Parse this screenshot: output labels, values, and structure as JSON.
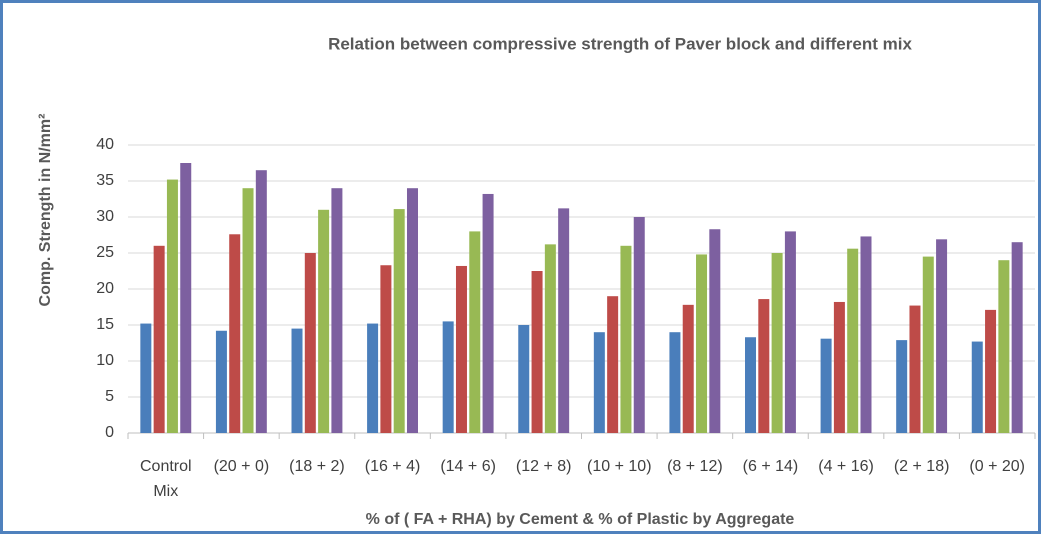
{
  "chart_data": {
    "type": "bar",
    "title": "Relation between compressive strength of Paver block and  different mix",
    "xlabel": "% of ( FA + RHA) by Cement & % of Plastic by Aggregate",
    "ylabel": "Comp. Strength in N/mm²",
    "categories": [
      "Control Mix",
      "(20 + 0)",
      "(18 + 2)",
      "(16 + 4)",
      "(14 + 6)",
      "(12 + 8)",
      "(10 + 10)",
      "(8 + 12)",
      "(6 + 14)",
      "(4 + 16)",
      "(2 + 18)",
      "(0 + 20)"
    ],
    "series": [
      {
        "color": "#4a7ebb",
        "values": [
          15.2,
          14.2,
          14.5,
          15.2,
          15.5,
          15.0,
          14.0,
          14.0,
          13.3,
          13.1,
          12.9,
          12.7
        ]
      },
      {
        "color": "#be4b48",
        "values": [
          26.0,
          27.6,
          25.0,
          23.3,
          23.2,
          22.5,
          19.0,
          17.8,
          18.6,
          18.2,
          17.7,
          17.1
        ]
      },
      {
        "color": "#98b954",
        "values": [
          35.2,
          34.0,
          31.0,
          31.1,
          28.0,
          26.2,
          26.0,
          24.8,
          25.0,
          25.6,
          24.5,
          24.0
        ]
      },
      {
        "color": "#7d60a0",
        "values": [
          37.5,
          36.5,
          34.0,
          34.0,
          33.2,
          31.2,
          30.0,
          28.3,
          28.0,
          27.3,
          26.9,
          26.5
        ]
      }
    ],
    "ylim": [
      0,
      40
    ],
    "yticks": [
      0,
      5,
      10,
      15,
      20,
      25,
      30,
      35,
      40
    ],
    "grid": true
  }
}
